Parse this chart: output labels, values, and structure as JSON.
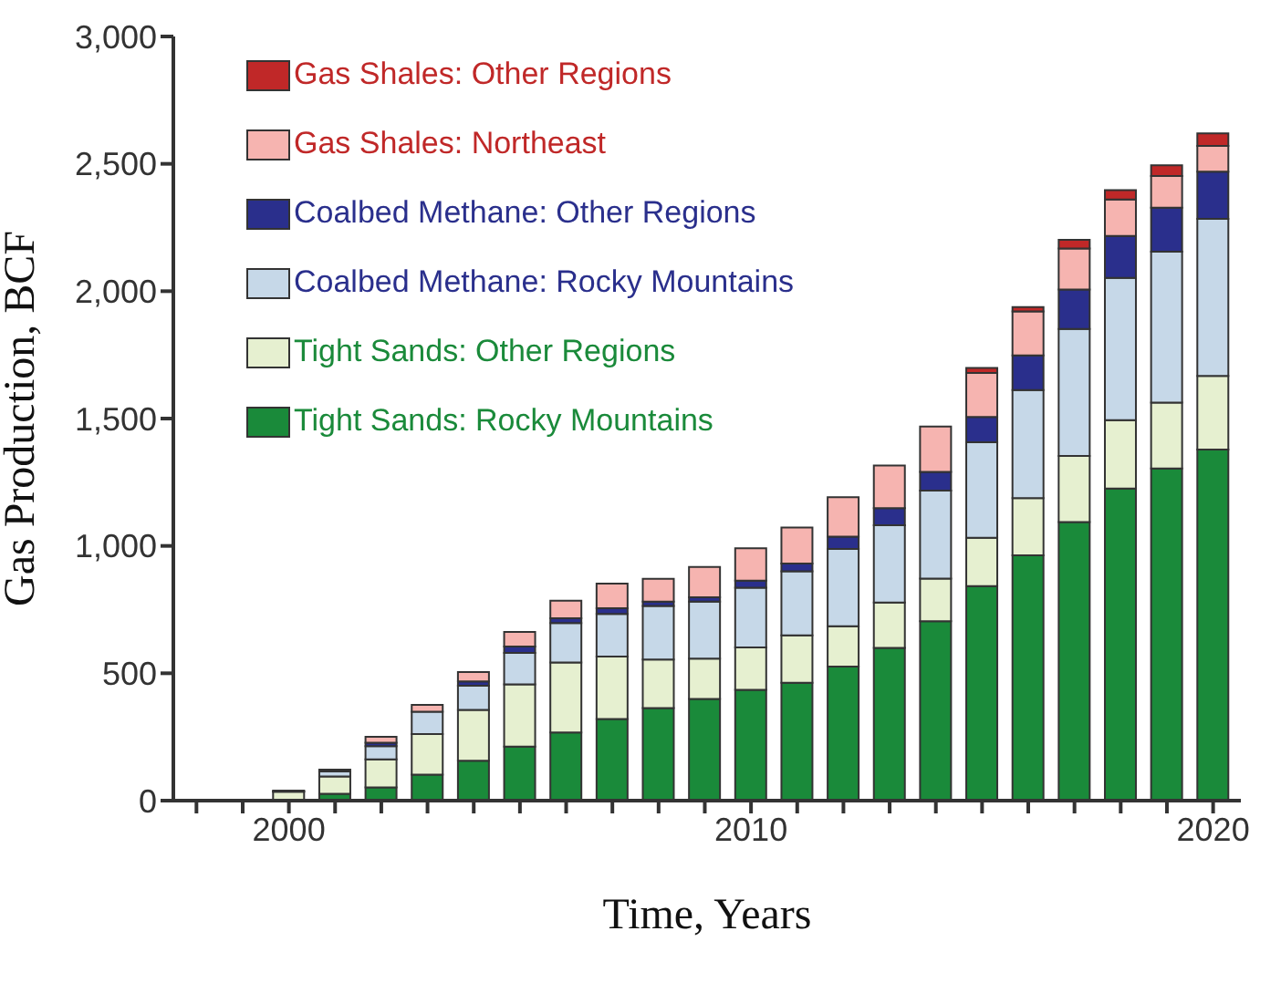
{
  "chart_data": {
    "type": "bar",
    "stacked": true,
    "xlabel": "Time, Years",
    "ylabel": "Gas Production, BCF",
    "x": [
      2000,
      2001,
      2002,
      2003,
      2004,
      2005,
      2006,
      2007,
      2008,
      2009,
      2010,
      2011,
      2012,
      2013,
      2014,
      2015,
      2016,
      2017,
      2018,
      2019,
      2020
    ],
    "series": [
      {
        "name": "Tight Sands: Rocky Mountains",
        "color": "#1a8a3a",
        "values": [
          null,
          27,
          52,
          102,
          157,
          212,
          268,
          320,
          363,
          399,
          435,
          463,
          526,
          600,
          704,
          842,
          963,
          1094,
          1225,
          1304,
          1378
        ]
      },
      {
        "name": "Tight Sands: Other Regions",
        "color": "#e6f0d0",
        "values": [
          35,
          68,
          110,
          159,
          199,
          244,
          274,
          246,
          191,
          159,
          166,
          186,
          159,
          178,
          168,
          190,
          225,
          259,
          269,
          259,
          289
        ]
      },
      {
        "name": "Coalbed Methane: Rocky Mountains",
        "color": "#c6d8e8",
        "values": [
          null,
          20,
          52,
          88,
          95,
          124,
          155,
          167,
          210,
          223,
          235,
          251,
          303,
          303,
          345,
          375,
          424,
          499,
          558,
          592,
          617
        ]
      },
      {
        "name": "Coalbed Methane: Other Regions",
        "color": "#2a2f8c",
        "values": [
          2,
          null,
          13,
          null,
          17,
          25,
          19,
          22,
          17,
          17,
          28,
          31,
          48,
          67,
          74,
          99,
          136,
          155,
          165,
          173,
          185
        ]
      },
      {
        "name": "Gas Shales: Northeast",
        "color": "#f6b4b0",
        "values": [
          2,
          7,
          24,
          27,
          37,
          57,
          69,
          97,
          90,
          119,
          127,
          141,
          155,
          168,
          178,
          173,
          173,
          161,
          143,
          124,
          101
        ]
      },
      {
        "name": "Gas Shales: Other Regions",
        "color": "#c02828",
        "values": [
          0,
          0,
          0,
          0,
          0,
          0,
          0,
          0,
          0,
          0,
          0,
          0,
          0,
          0,
          0,
          20,
          17,
          34,
          37,
          42,
          50
        ]
      }
    ],
    "xlim": [
      1997.5,
      2020.6
    ],
    "xticks": [
      {
        "value": 1998,
        "label": null
      },
      {
        "value": 1999,
        "label": null
      },
      2000,
      {
        "value": 2001,
        "label": null
      },
      {
        "value": 2002,
        "label": null
      },
      {
        "value": 2003,
        "label": null
      },
      {
        "value": 2004,
        "label": null
      },
      {
        "value": 2005,
        "label": null
      },
      {
        "value": 2006,
        "label": null
      },
      {
        "value": 2007,
        "label": null
      },
      {
        "value": 2008,
        "label": null
      },
      {
        "value": 2009,
        "label": null
      },
      2010,
      {
        "value": 2011,
        "label": null
      },
      {
        "value": 2012,
        "label": null
      },
      {
        "value": 2013,
        "label": null
      },
      {
        "value": 2014,
        "label": null
      },
      {
        "value": 2015,
        "label": null
      },
      {
        "value": 2016,
        "label": null
      },
      {
        "value": 2017,
        "label": null
      },
      {
        "value": 2018,
        "label": null
      },
      {
        "value": 2019,
        "label": null
      },
      2020
    ],
    "ylim": [
      0,
      3000
    ],
    "yticks": [
      0,
      {
        "value": 500,
        "label": "500"
      },
      {
        "value": 1000,
        "label": "1,000"
      },
      {
        "value": 1500,
        "label": "1,500"
      },
      {
        "value": 2000,
        "label": "2,000"
      },
      {
        "value": 2500,
        "label": "2,500"
      },
      {
        "value": 3000,
        "label": "3,000"
      }
    ],
    "legend": "top left",
    "grid": false
  }
}
